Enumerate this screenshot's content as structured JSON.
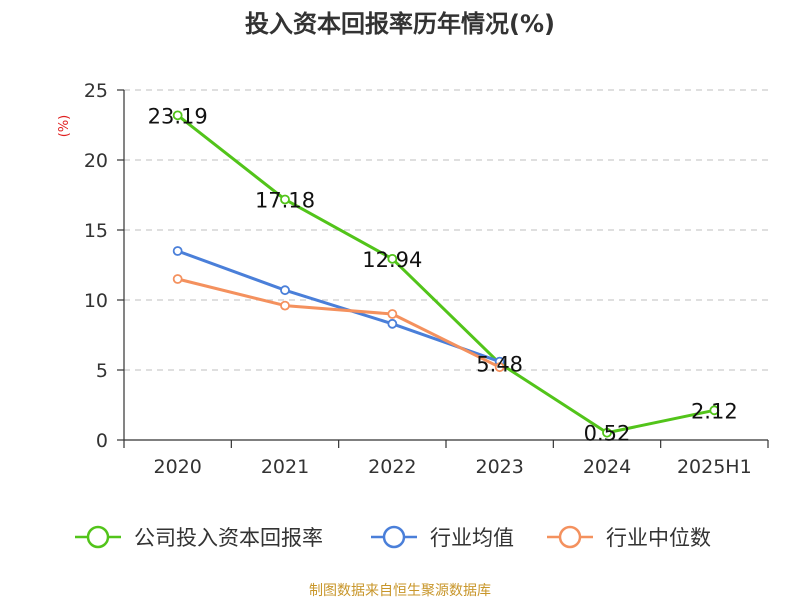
{
  "chart_data": {
    "type": "line",
    "title": "投入资本回报率历年情况(%)",
    "ylabel": "(%)",
    "ylim": [
      0,
      25
    ],
    "yticks": [
      0,
      5,
      10,
      15,
      20,
      25
    ],
    "grid": true,
    "legend_position": "bottom",
    "categories": [
      "2020",
      "2021",
      "2022",
      "2023",
      "2024",
      "2025H1"
    ],
    "series": [
      {
        "name": "公司投入资本回报率",
        "color": "#52c41a",
        "values": [
          23.19,
          17.18,
          12.94,
          5.48,
          0.52,
          2.12
        ],
        "data_labels": [
          "23.19",
          "17.18",
          "12.94",
          "5.48",
          "0.52",
          "2.12"
        ]
      },
      {
        "name": "行业均值",
        "color": "#4a7fd9",
        "values": [
          13.5,
          10.7,
          8.3,
          5.6,
          null,
          null
        ]
      },
      {
        "name": "行业中位数",
        "color": "#f4915e",
        "values": [
          11.5,
          9.6,
          9.0,
          5.2,
          null,
          null
        ]
      }
    ]
  },
  "source": "制图数据来自恒生聚源数据库"
}
